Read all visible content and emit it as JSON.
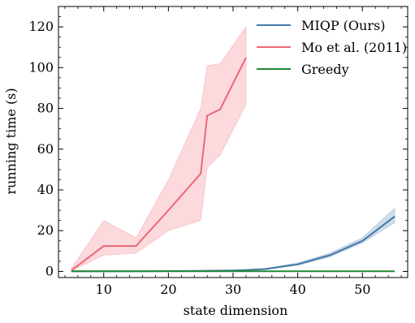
{
  "chart_data": {
    "type": "line",
    "xlabel": "state dimension",
    "ylabel": "running time (s)",
    "xlim": [
      3,
      57
    ],
    "ylim": [
      -3,
      130
    ],
    "xticks": [
      10,
      20,
      30,
      40,
      50
    ],
    "yticks": [
      0,
      20,
      40,
      60,
      80,
      100,
      120
    ],
    "xtick_labels": [
      "10",
      "20",
      "30",
      "40",
      "50"
    ],
    "ytick_labels": [
      "0",
      "20",
      "40",
      "60",
      "80",
      "100",
      "120"
    ],
    "grid": false,
    "legend_position": "top-right",
    "series": [
      {
        "name": "MIQP (Ours)",
        "color": "#4477aa",
        "x": [
          5,
          10,
          15,
          20,
          25,
          30,
          32,
          35,
          40,
          45,
          50,
          55
        ],
        "y": [
          0.1,
          0.1,
          0.1,
          0.2,
          0.3,
          0.5,
          0.7,
          1.2,
          3.5,
          8.0,
          15.0,
          27.0
        ],
        "lower": [
          0.1,
          0.1,
          0.1,
          0.2,
          0.3,
          0.5,
          0.6,
          1.0,
          3.0,
          7.2,
          14.0,
          24.0
        ],
        "upper": [
          0.1,
          0.1,
          0.1,
          0.2,
          0.3,
          0.6,
          0.8,
          1.5,
          4.2,
          9.0,
          16.5,
          31.0
        ]
      },
      {
        "name": "Mo et al. (2011)",
        "color": "#ee6677",
        "x": [
          5,
          10,
          15,
          20,
          25,
          26,
          28,
          32
        ],
        "y": [
          0.5,
          12.5,
          12.5,
          30,
          48,
          76.5,
          79.5,
          105
        ],
        "lower": [
          0.3,
          8,
          9,
          20,
          25,
          51,
          57,
          82
        ],
        "upper": [
          1.5,
          25,
          16.5,
          45,
          80,
          101,
          102,
          120
        ]
      },
      {
        "name": "Greedy",
        "color": "#228833",
        "x": [
          5,
          10,
          15,
          20,
          25,
          30,
          35,
          40,
          45,
          50,
          55
        ],
        "y": [
          0.1,
          0.1,
          0.1,
          0.1,
          0.1,
          0.1,
          0.1,
          0.1,
          0.1,
          0.1,
          0.1
        ]
      }
    ]
  }
}
